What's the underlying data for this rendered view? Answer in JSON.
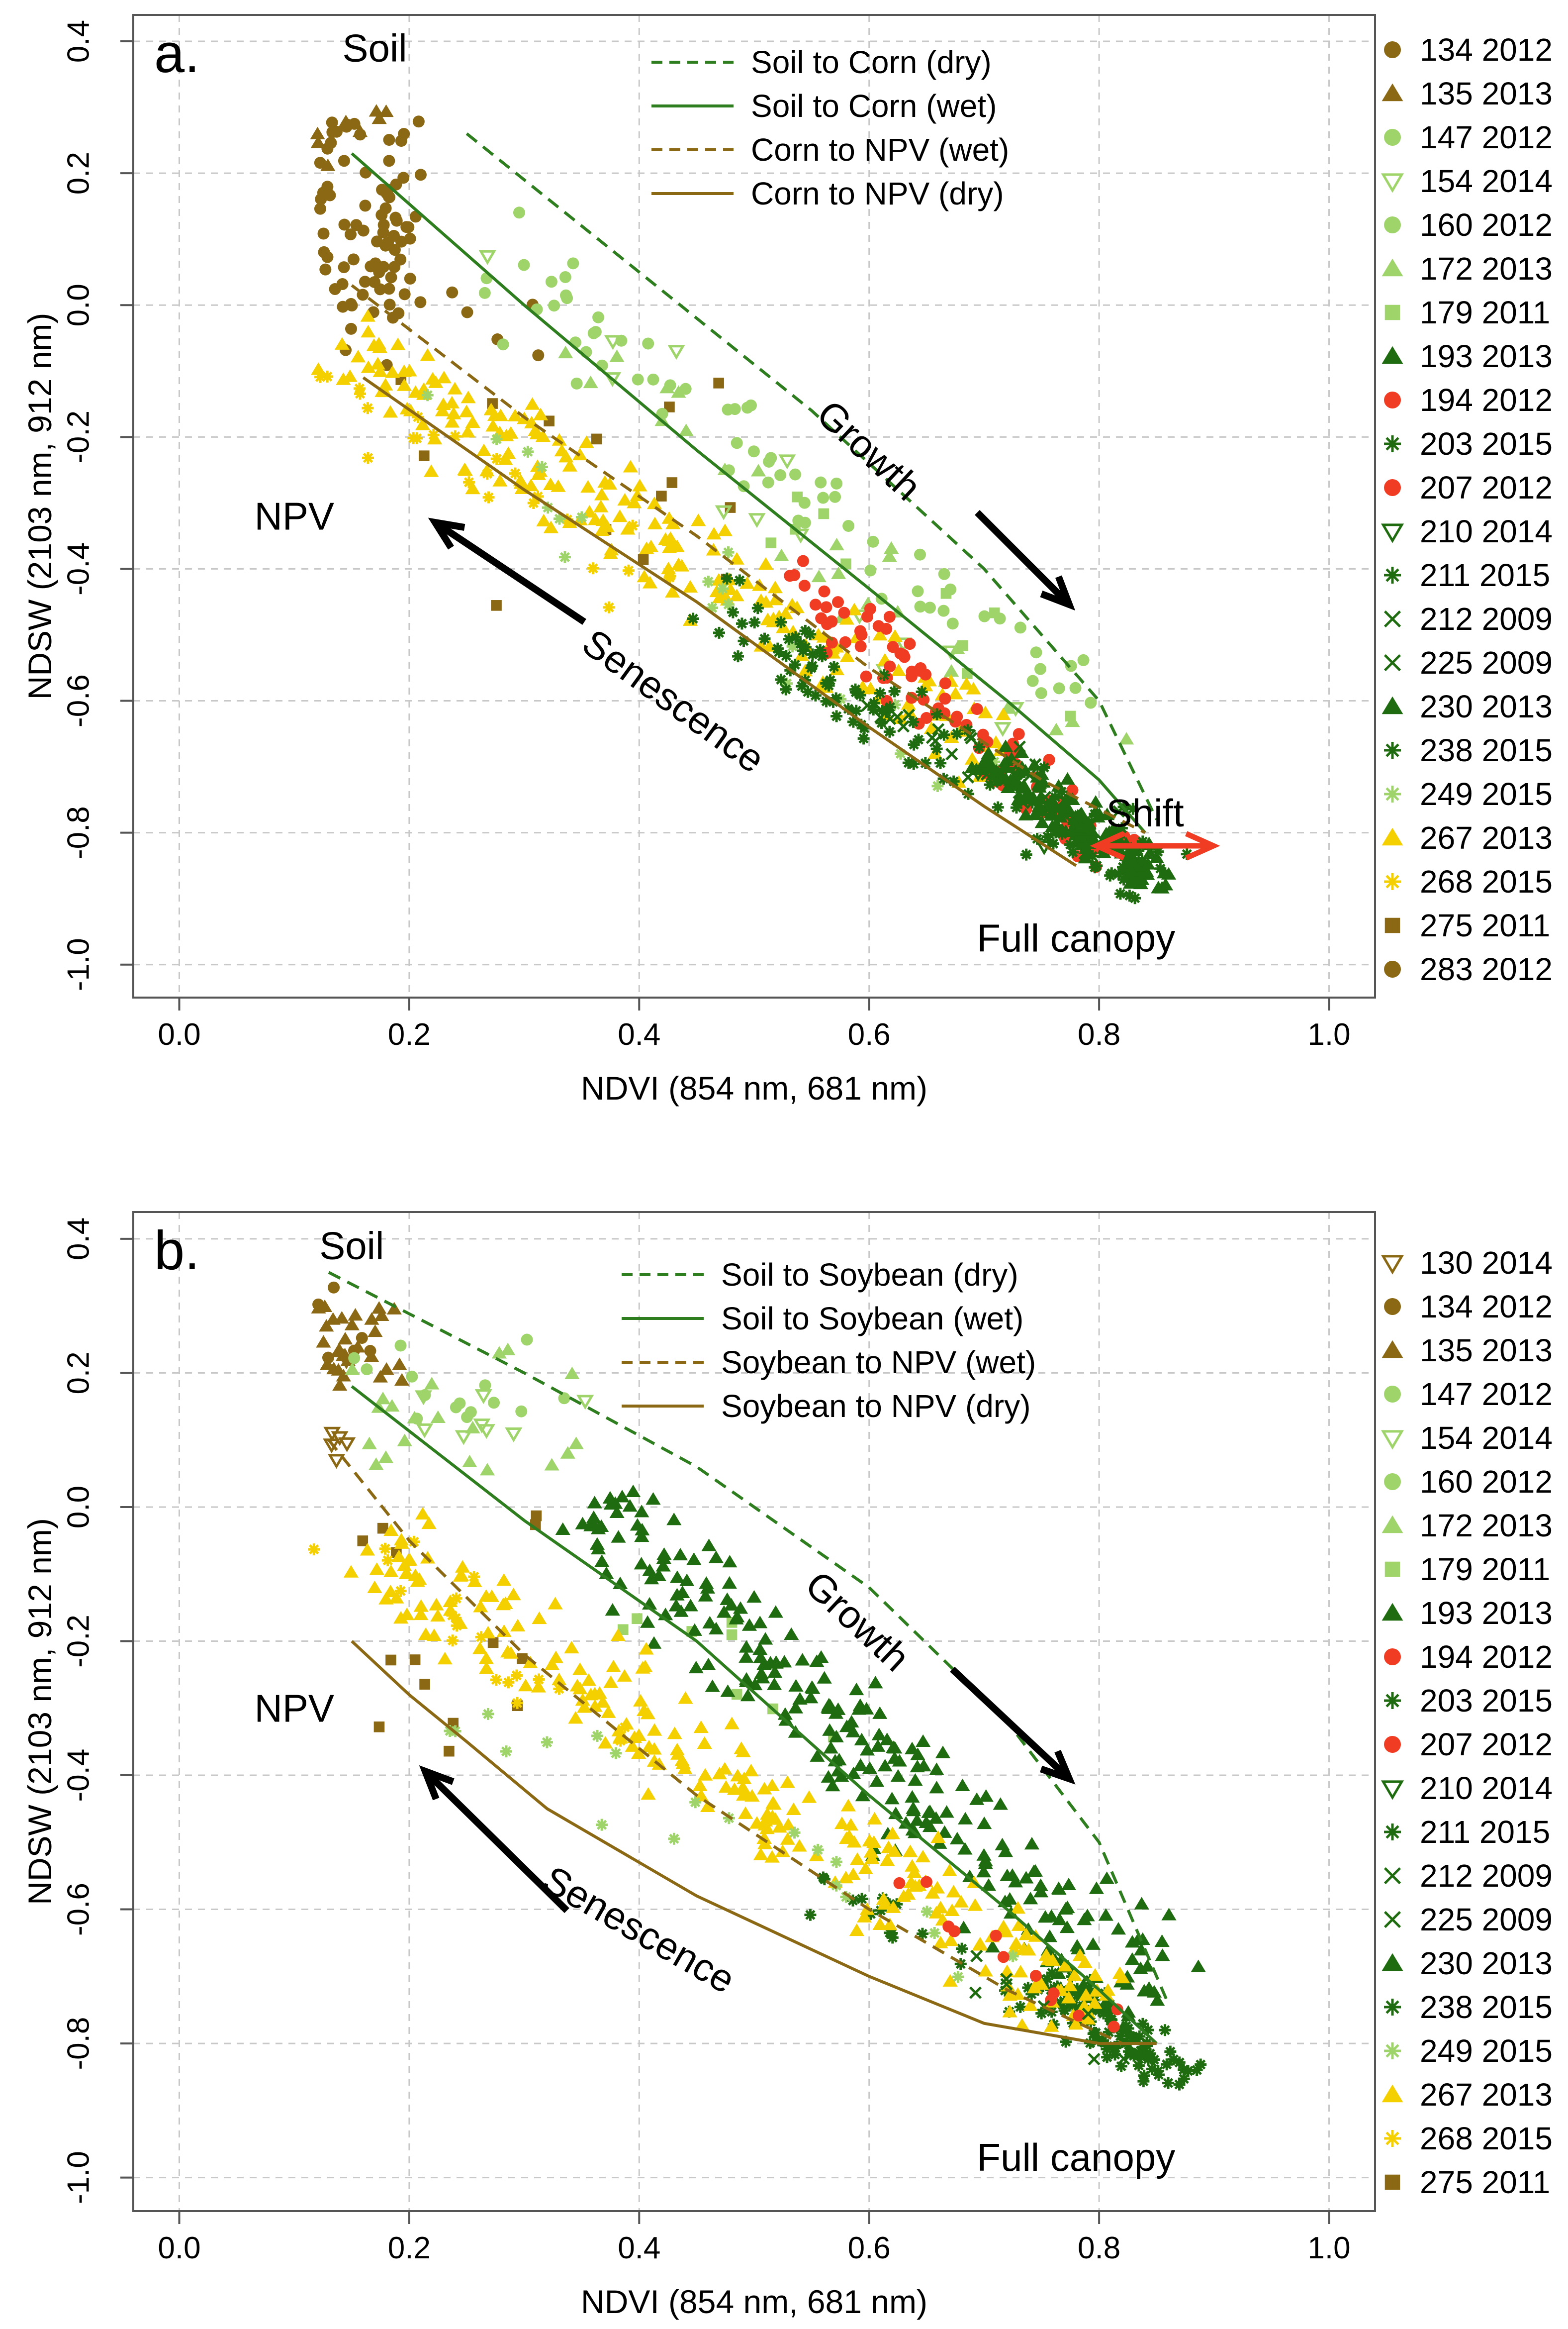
{
  "chart_data": [
    {
      "panel_label": "a.",
      "type": "scatter",
      "xlabel": "NDVI (854 nm, 681 nm)",
      "ylabel": "NDSW (2103 nm, 912 nm)",
      "xlim": [
        -0.04,
        1.04
      ],
      "ylim": [
        -1.05,
        0.44
      ],
      "xticks": [
        "0.0",
        "0.2",
        "0.4",
        "0.6",
        "0.8",
        "1.0"
      ],
      "yticks": [
        "-1.0",
        "-0.8",
        "-0.6",
        "-0.4",
        "-0.2",
        "0.0",
        "0.2",
        "0.4"
      ],
      "grid": true,
      "lines": [
        {
          "name": "Soil to Corn (dry)",
          "color": "#2e7d1e",
          "dash": "dashed",
          "x": [
            0.25,
            0.4,
            0.55,
            0.7,
            0.8,
            0.85
          ],
          "y": [
            0.26,
            0.05,
            -0.16,
            -0.4,
            -0.6,
            -0.78
          ]
        },
        {
          "name": "Soil to Corn (wet)",
          "color": "#2e7d1e",
          "dash": "solid",
          "x": [
            0.15,
            0.3,
            0.45,
            0.6,
            0.72,
            0.8,
            0.84
          ],
          "y": [
            0.23,
            0.0,
            -0.22,
            -0.43,
            -0.6,
            -0.72,
            -0.8
          ]
        },
        {
          "name": "Corn to NPV (wet)",
          "color": "#8b6914",
          "dash": "dashed",
          "x": [
            0.15,
            0.3,
            0.45,
            0.6,
            0.75,
            0.84
          ],
          "y": [
            0.03,
            -0.17,
            -0.35,
            -0.55,
            -0.72,
            -0.8
          ]
        },
        {
          "name": "Corn to NPV (dry)",
          "color": "#8b6914",
          "dash": "solid",
          "x": [
            0.16,
            0.3,
            0.45,
            0.6,
            0.7,
            0.78
          ],
          "y": [
            -0.11,
            -0.28,
            -0.45,
            -0.64,
            -0.76,
            -0.85
          ]
        }
      ],
      "legend_lines": [
        "Soil to Corn (dry)",
        "Soil to Corn (wet)",
        "Corn to NPV (wet)",
        "Corn to NPV (dry)"
      ],
      "series": [
        {
          "name": "134 2012",
          "color": "#8b6914",
          "marker": "circle"
        },
        {
          "name": "135 2013",
          "color": "#8b6914",
          "marker": "triangle"
        },
        {
          "name": "147 2012",
          "color": "#9fd46b",
          "marker": "circle"
        },
        {
          "name": "154 2014",
          "color": "#9fd46b",
          "marker": "triangle-down-open"
        },
        {
          "name": "160 2012",
          "color": "#9fd46b",
          "marker": "circle"
        },
        {
          "name": "172 2013",
          "color": "#9fd46b",
          "marker": "triangle"
        },
        {
          "name": "179 2011",
          "color": "#9fd46b",
          "marker": "square"
        },
        {
          "name": "193 2013",
          "color": "#1f6b0f",
          "marker": "triangle"
        },
        {
          "name": "194 2012",
          "color": "#f03c22",
          "marker": "circle"
        },
        {
          "name": "203 2015",
          "color": "#1f6b0f",
          "marker": "asterisk"
        },
        {
          "name": "207 2012",
          "color": "#f03c22",
          "marker": "circle"
        },
        {
          "name": "210 2014",
          "color": "#1f6b0f",
          "marker": "triangle-down-open"
        },
        {
          "name": "211 2015",
          "color": "#1f6b0f",
          "marker": "asterisk"
        },
        {
          "name": "212 2009",
          "color": "#1f6b0f",
          "marker": "x"
        },
        {
          "name": "225 2009",
          "color": "#1f6b0f",
          "marker": "x"
        },
        {
          "name": "230 2013",
          "color": "#1f6b0f",
          "marker": "triangle"
        },
        {
          "name": "238 2015",
          "color": "#1f6b0f",
          "marker": "asterisk"
        },
        {
          "name": "249 2015",
          "color": "#9fd46b",
          "marker": "asterisk"
        },
        {
          "name": "267 2013",
          "color": "#f5d000",
          "marker": "triangle"
        },
        {
          "name": "268 2015",
          "color": "#f5d000",
          "marker": "asterisk"
        },
        {
          "name": "275 2011",
          "color": "#8b6914",
          "marker": "square"
        },
        {
          "name": "283 2012",
          "color": "#8b6914",
          "marker": "circle"
        }
      ],
      "clusters": [
        {
          "series": 0,
          "n": 80,
          "x": [
            0.12,
            0.21
          ],
          "y": [
            -0.02,
            0.28
          ],
          "along": false
        },
        {
          "series": 1,
          "n": 8,
          "x": [
            0.12,
            0.18
          ],
          "y": [
            0.2,
            0.3
          ],
          "along": false
        },
        {
          "series": 20,
          "n": 14,
          "x": [
            0.13,
            0.5
          ],
          "y": [
            -0.48,
            -0.05
          ],
          "along": false
        },
        {
          "series": 21,
          "n": 10,
          "x": [
            0.12,
            0.32
          ],
          "y": [
            -0.1,
            0.05
          ],
          "along": false
        },
        {
          "series": 2,
          "n": 45,
          "x": [
            0.27,
            0.8
          ],
          "y": [
            0.1,
            -0.62
          ],
          "spread": 0.08,
          "along": true
        },
        {
          "series": 4,
          "n": 25,
          "x": [
            0.3,
            0.75
          ],
          "y": [
            0.0,
            -0.55
          ],
          "spread": 0.08,
          "along": true
        },
        {
          "series": 3,
          "n": 14,
          "x": [
            0.28,
            0.75
          ],
          "y": [
            0.1,
            -0.72
          ],
          "spread": 0.08,
          "along": true
        },
        {
          "series": 5,
          "n": 25,
          "x": [
            0.3,
            0.8
          ],
          "y": [
            0.0,
            -0.7
          ],
          "spread": 0.08,
          "along": true
        },
        {
          "series": 6,
          "n": 10,
          "x": [
            0.5,
            0.78
          ],
          "y": [
            -0.3,
            -0.62
          ],
          "spread": 0.06,
          "along": true
        },
        {
          "series": 18,
          "n": 210,
          "x": [
            0.14,
            0.72
          ],
          "y": [
            -0.05,
            -0.68
          ],
          "spread": 0.09,
          "along": true
        },
        {
          "series": 19,
          "n": 25,
          "x": [
            0.11,
            0.45
          ],
          "y": [
            -0.1,
            -0.45
          ],
          "spread": 0.08,
          "along": true
        },
        {
          "series": 17,
          "n": 20,
          "x": [
            0.2,
            0.7
          ],
          "y": [
            -0.12,
            -0.72
          ],
          "spread": 0.08,
          "along": true
        },
        {
          "series": 8,
          "n": 90,
          "x": [
            0.53,
            0.82
          ],
          "y": [
            -0.4,
            -0.85
          ],
          "spread": 0.06,
          "along": true
        },
        {
          "series": 15,
          "n": 150,
          "x": [
            0.7,
            0.86
          ],
          "y": [
            -0.68,
            -0.88
          ],
          "spread": 0.04,
          "along": true
        },
        {
          "series": 9,
          "n": 130,
          "x": [
            0.45,
            0.86
          ],
          "y": [
            -0.45,
            -0.88
          ],
          "spread": 0.07,
          "along": true
        },
        {
          "series": 13,
          "n": 30,
          "x": [
            0.6,
            0.85
          ],
          "y": [
            -0.6,
            -0.85
          ],
          "spread": 0.05,
          "along": true
        },
        {
          "series": 11,
          "n": 8,
          "x": [
            0.65,
            0.82
          ],
          "y": [
            -0.6,
            -0.85
          ],
          "spread": 0.05,
          "along": true
        }
      ],
      "annotations": [
        {
          "text": "Soil",
          "x": 0.17,
          "y": 0.39
        },
        {
          "text": "NPV",
          "x": 0.1,
          "y": -0.32
        },
        {
          "text": "Growth",
          "x": 0.6,
          "y": -0.22,
          "angle": 43
        },
        {
          "text": "Senescence",
          "x": 0.43,
          "y": -0.6,
          "angle": 36
        },
        {
          "text": "Full canopy",
          "x": 0.78,
          "y": -0.96
        },
        {
          "text": "Shift",
          "x": 0.84,
          "y": -0.77,
          "color": "#f03c22"
        }
      ]
    },
    {
      "panel_label": "b.",
      "type": "scatter",
      "xlabel": "NDVI (854 nm, 681 nm)",
      "ylabel": "NDSW (2103 nm, 912 nm)",
      "xlim": [
        -0.04,
        1.04
      ],
      "ylim": [
        -1.05,
        0.44
      ],
      "xticks": [
        "0.0",
        "0.2",
        "0.4",
        "0.6",
        "0.8",
        "1.0"
      ],
      "yticks": [
        "-1.0",
        "-0.8",
        "-0.6",
        "-0.4",
        "-0.2",
        "0.0",
        "0.2",
        "0.4"
      ],
      "grid": true,
      "lines": [
        {
          "name": "Soil to Soybean (dry)",
          "color": "#2e7d1e",
          "dash": "dashed",
          "x": [
            0.13,
            0.3,
            0.45,
            0.6,
            0.72,
            0.8,
            0.86
          ],
          "y": [
            0.35,
            0.2,
            0.06,
            -0.12,
            -0.32,
            -0.5,
            -0.74
          ]
        },
        {
          "name": "Soil to Soybean (wet)",
          "color": "#2e7d1e",
          "dash": "solid",
          "x": [
            0.15,
            0.3,
            0.45,
            0.6,
            0.72,
            0.8,
            0.85
          ],
          "y": [
            0.18,
            -0.02,
            -0.2,
            -0.43,
            -0.6,
            -0.72,
            -0.8
          ]
        },
        {
          "name": "Soybean to NPV (wet)",
          "color": "#8b6914",
          "dash": "dashed",
          "x": [
            0.13,
            0.2,
            0.3,
            0.45,
            0.6,
            0.72,
            0.82
          ],
          "y": [
            0.1,
            -0.05,
            -0.22,
            -0.43,
            -0.6,
            -0.72,
            -0.8
          ]
        },
        {
          "name": "Soybean to NPV (dry)",
          "color": "#8b6914",
          "dash": "solid",
          "x": [
            0.15,
            0.2,
            0.25,
            0.32,
            0.45,
            0.6,
            0.7,
            0.8,
            0.85
          ],
          "y": [
            -0.2,
            -0.28,
            -0.35,
            -0.45,
            -0.58,
            -0.7,
            -0.77,
            -0.8,
            -0.8
          ]
        }
      ],
      "legend_lines": [
        "Soil to Soybean (dry)",
        "Soil to Soybean (wet)",
        "Soybean to NPV (wet)",
        "Soybean to NPV (dry)"
      ],
      "series": [
        {
          "name": "130 2014",
          "color": "#8b6914",
          "marker": "triangle-down-open"
        },
        {
          "name": "134 2012",
          "color": "#8b6914",
          "marker": "circle"
        },
        {
          "name": "135 2013",
          "color": "#8b6914",
          "marker": "triangle"
        },
        {
          "name": "147 2012",
          "color": "#9fd46b",
          "marker": "circle"
        },
        {
          "name": "154 2014",
          "color": "#9fd46b",
          "marker": "triangle-down-open"
        },
        {
          "name": "160 2012",
          "color": "#9fd46b",
          "marker": "circle"
        },
        {
          "name": "172 2013",
          "color": "#9fd46b",
          "marker": "triangle"
        },
        {
          "name": "179 2011",
          "color": "#9fd46b",
          "marker": "square"
        },
        {
          "name": "193 2013",
          "color": "#1f6b0f",
          "marker": "triangle"
        },
        {
          "name": "194 2012",
          "color": "#f03c22",
          "marker": "circle"
        },
        {
          "name": "203 2015",
          "color": "#1f6b0f",
          "marker": "asterisk"
        },
        {
          "name": "207 2012",
          "color": "#f03c22",
          "marker": "circle"
        },
        {
          "name": "210 2014",
          "color": "#1f6b0f",
          "marker": "triangle-down-open"
        },
        {
          "name": "211 2015",
          "color": "#1f6b0f",
          "marker": "asterisk"
        },
        {
          "name": "212 2009",
          "color": "#1f6b0f",
          "marker": "x"
        },
        {
          "name": "225 2009",
          "color": "#1f6b0f",
          "marker": "x"
        },
        {
          "name": "230 2013",
          "color": "#1f6b0f",
          "marker": "triangle"
        },
        {
          "name": "238 2015",
          "color": "#1f6b0f",
          "marker": "asterisk"
        },
        {
          "name": "249 2015",
          "color": "#9fd46b",
          "marker": "asterisk"
        },
        {
          "name": "267 2013",
          "color": "#f5d000",
          "marker": "triangle"
        },
        {
          "name": "268 2015",
          "color": "#f5d000",
          "marker": "asterisk"
        },
        {
          "name": "275 2011",
          "color": "#8b6914",
          "marker": "square"
        }
      ],
      "clusters": [
        {
          "series": 1,
          "n": 6,
          "x": [
            0.12,
            0.18
          ],
          "y": [
            0.22,
            0.34
          ],
          "along": false
        },
        {
          "series": 2,
          "n": 30,
          "x": [
            0.12,
            0.2
          ],
          "y": [
            0.18,
            0.3
          ],
          "along": false
        },
        {
          "series": 0,
          "n": 6,
          "x": [
            0.12,
            0.15
          ],
          "y": [
            0.05,
            0.22
          ],
          "along": false
        },
        {
          "series": 21,
          "n": 14,
          "x": [
            0.13,
            0.33
          ],
          "y": [
            -0.38,
            0.0
          ],
          "along": false
        },
        {
          "series": 3,
          "n": 15,
          "x": [
            0.15,
            0.35
          ],
          "y": [
            0.12,
            0.25
          ],
          "along": false
        },
        {
          "series": 6,
          "n": 20,
          "x": [
            0.15,
            0.35
          ],
          "y": [
            0.05,
            0.25
          ],
          "along": false
        },
        {
          "series": 4,
          "n": 8,
          "x": [
            0.15,
            0.4
          ],
          "y": [
            0.1,
            0.2
          ],
          "along": false
        },
        {
          "series": 7,
          "n": 8,
          "x": [
            0.35,
            0.65
          ],
          "y": [
            -0.1,
            -0.4
          ],
          "spread": 0.06,
          "along": true
        },
        {
          "series": 16,
          "n": 260,
          "x": [
            0.35,
            0.86
          ],
          "y": [
            0.0,
            -0.75
          ],
          "spread": 0.1,
          "along": true
        },
        {
          "series": 17,
          "n": 100,
          "x": [
            0.75,
            0.88
          ],
          "y": [
            -0.7,
            -0.86
          ],
          "spread": 0.04,
          "along": true
        },
        {
          "series": 10,
          "n": 30,
          "x": [
            0.55,
            0.85
          ],
          "y": [
            -0.55,
            -0.85
          ],
          "spread": 0.05,
          "along": true
        },
        {
          "series": 19,
          "n": 260,
          "x": [
            0.16,
            0.8
          ],
          "y": [
            -0.05,
            -0.76
          ],
          "spread": 0.09,
          "along": true
        },
        {
          "series": 20,
          "n": 20,
          "x": [
            0.13,
            0.4
          ],
          "y": [
            -0.02,
            -0.35
          ],
          "spread": 0.07,
          "along": true
        },
        {
          "series": 18,
          "n": 20,
          "x": [
            0.25,
            0.75
          ],
          "y": [
            -0.3,
            -0.7
          ],
          "spread": 0.07,
          "along": true
        },
        {
          "series": 9,
          "n": 12,
          "x": [
            0.63,
            0.82
          ],
          "y": [
            -0.55,
            -0.8
          ],
          "spread": 0.04,
          "along": true
        },
        {
          "series": 14,
          "n": 10,
          "x": [
            0.65,
            0.85
          ],
          "y": [
            -0.65,
            -0.85
          ],
          "spread": 0.04,
          "along": true
        }
      ],
      "annotations": [
        {
          "text": "Soil",
          "x": 0.15,
          "y": 0.39
        },
        {
          "text": "NPV",
          "x": 0.1,
          "y": -0.3
        },
        {
          "text": "Growth",
          "x": 0.59,
          "y": -0.17,
          "angle": 43
        },
        {
          "text": "Senescence",
          "x": 0.4,
          "y": -0.63,
          "angle": 30
        },
        {
          "text": "Full canopy",
          "x": 0.78,
          "y": -0.97
        }
      ]
    }
  ]
}
